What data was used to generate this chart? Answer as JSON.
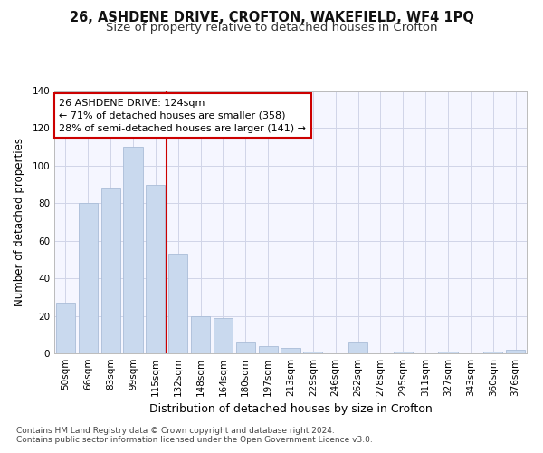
{
  "title1": "26, ASHDENE DRIVE, CROFTON, WAKEFIELD, WF4 1PQ",
  "title2": "Size of property relative to detached houses in Crofton",
  "xlabel": "Distribution of detached houses by size in Crofton",
  "ylabel": "Number of detached properties",
  "footer1": "Contains HM Land Registry data © Crown copyright and database right 2024.",
  "footer2": "Contains public sector information licensed under the Open Government Licence v3.0.",
  "categories": [
    "50sqm",
    "66sqm",
    "83sqm",
    "99sqm",
    "115sqm",
    "132sqm",
    "148sqm",
    "164sqm",
    "180sqm",
    "197sqm",
    "213sqm",
    "229sqm",
    "246sqm",
    "262sqm",
    "278sqm",
    "295sqm",
    "311sqm",
    "327sqm",
    "343sqm",
    "360sqm",
    "376sqm"
  ],
  "values": [
    27,
    80,
    88,
    110,
    90,
    53,
    20,
    19,
    6,
    4,
    3,
    1,
    0,
    6,
    0,
    1,
    0,
    1,
    0,
    1,
    2
  ],
  "bar_color": "#c9d9ee",
  "bar_edge_color": "#aabdd8",
  "vline_color": "#cc0000",
  "annotation_text": "26 ASHDENE DRIVE: 124sqm\n← 71% of detached houses are smaller (358)\n28% of semi-detached houses are larger (141) →",
  "annotation_box_color": "#ffffff",
  "annotation_box_edge": "#cc0000",
  "bg_color": "#ffffff",
  "plot_bg_color": "#f5f6ff",
  "grid_color": "#d0d4e8",
  "ylim": [
    0,
    140
  ],
  "yticks": [
    0,
    20,
    40,
    60,
    80,
    100,
    120,
    140
  ],
  "title1_fontsize": 10.5,
  "title2_fontsize": 9.5,
  "xlabel_fontsize": 9,
  "ylabel_fontsize": 8.5,
  "tick_fontsize": 7.5,
  "annotation_fontsize": 8,
  "footer_fontsize": 6.5
}
